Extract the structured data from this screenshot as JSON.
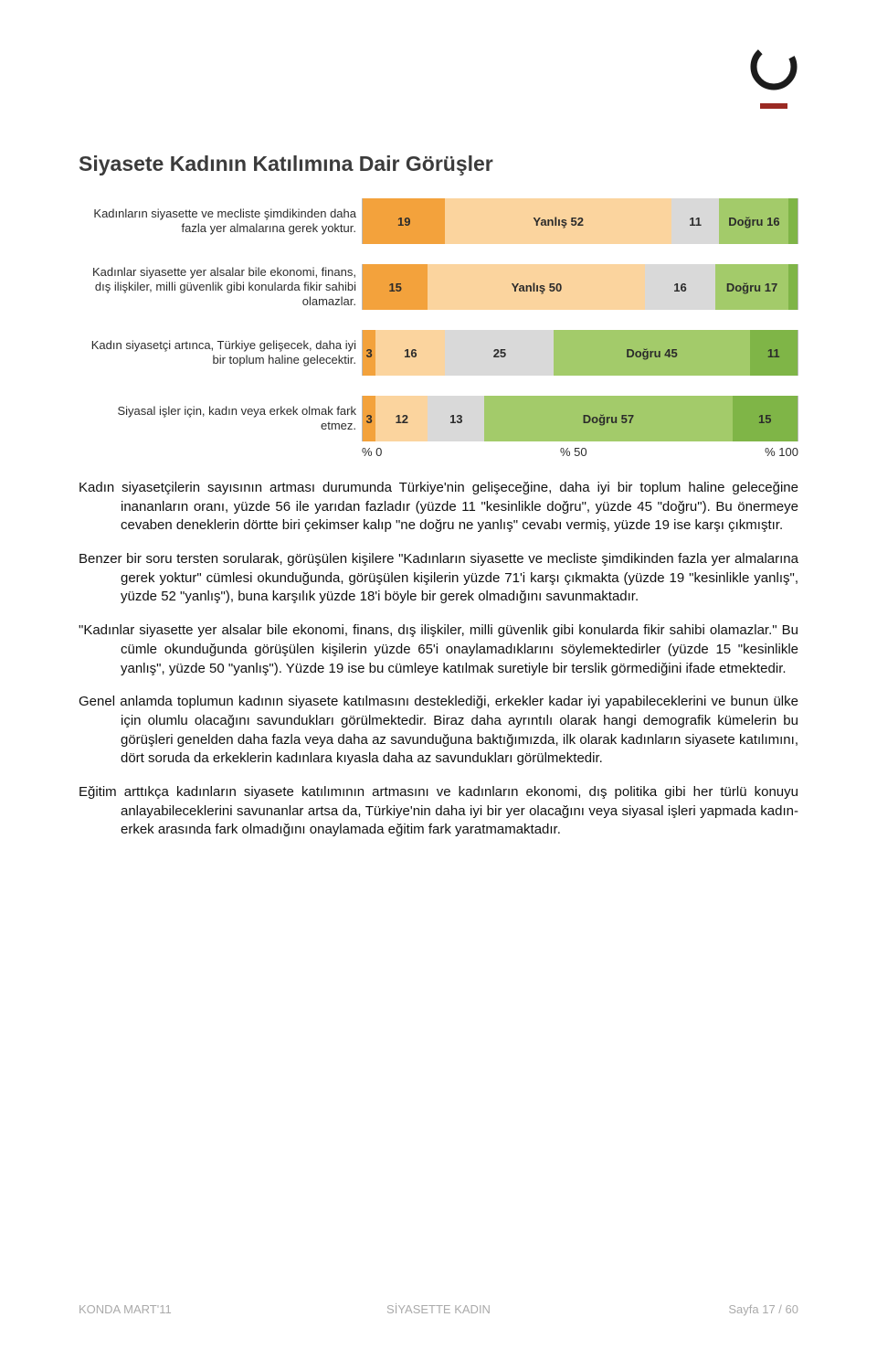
{
  "logo": {
    "fg": "#1c1c1c",
    "accent": "#9a2a23"
  },
  "chart": {
    "title": "Siyasete Kadının Katılımına Dair Görüşler",
    "segment_colors": {
      "strong_wrong": "#f3a23c",
      "wrong": "#fbd49e",
      "neutral": "#d9d9d9",
      "right": "#a3cb6a",
      "strong_right": "#7fb547"
    },
    "axis": {
      "ticks": [
        "% 0",
        "% 50",
        "% 100"
      ]
    },
    "rows": [
      {
        "label": "Kadınların siyasette ve mecliste şimdikinden daha fazla yer almalarına gerek yoktur.",
        "segs": [
          {
            "v": 19,
            "t": "19",
            "c": "strong_wrong"
          },
          {
            "v": 52,
            "t": "Yanlış 52",
            "c": "wrong"
          },
          {
            "v": 11,
            "t": "11",
            "c": "neutral"
          },
          {
            "v": 16,
            "t": "Doğru 16",
            "c": "right"
          },
          {
            "v": 2,
            "t": "",
            "c": "strong_right"
          }
        ]
      },
      {
        "label": "Kadınlar siyasette yer alsalar bile ekonomi, finans, dış ilişkiler, milli güvenlik gibi konularda fikir sahibi olamazlar.",
        "segs": [
          {
            "v": 15,
            "t": "15",
            "c": "strong_wrong"
          },
          {
            "v": 50,
            "t": "Yanlış 50",
            "c": "wrong"
          },
          {
            "v": 16,
            "t": "16",
            "c": "neutral"
          },
          {
            "v": 17,
            "t": "Doğru 17",
            "c": "right"
          },
          {
            "v": 2,
            "t": "",
            "c": "strong_right"
          }
        ]
      },
      {
        "label": "Kadın siyasetçi artınca, Türkiye gelişecek, daha iyi bir toplum haline gelecektir.",
        "segs": [
          {
            "v": 3,
            "t": "3",
            "c": "strong_wrong"
          },
          {
            "v": 16,
            "t": "16",
            "c": "wrong"
          },
          {
            "v": 25,
            "t": "25",
            "c": "neutral"
          },
          {
            "v": 45,
            "t": "Doğru 45",
            "c": "right"
          },
          {
            "v": 11,
            "t": "11",
            "c": "strong_right"
          }
        ]
      },
      {
        "label": "Siyasal işler için, kadın veya erkek olmak fark etmez.",
        "segs": [
          {
            "v": 3,
            "t": "3",
            "c": "strong_wrong"
          },
          {
            "v": 12,
            "t": "12",
            "c": "wrong"
          },
          {
            "v": 13,
            "t": "13",
            "c": "neutral"
          },
          {
            "v": 57,
            "t": "Doğru 57",
            "c": "right"
          },
          {
            "v": 15,
            "t": "15",
            "c": "strong_right"
          }
        ]
      }
    ]
  },
  "paragraphs": {
    "p1": "Kadın siyasetçilerin sayısının artması durumunda Türkiye'nin gelişeceğine, daha iyi bir toplum haline geleceğine inananların oranı, yüzde 56 ile yarıdan fazladır (yüzde 11 \"kesinlikle doğru\", yüzde 45 \"doğru\"). Bu önermeye cevaben deneklerin dörtte biri çekimser kalıp \"ne doğru ne yanlış\" cevabı vermiş, yüzde 19 ise karşı çıkmıştır.",
    "p2": "Benzer bir soru tersten sorularak, görüşülen kişilere \"Kadınların siyasette ve mecliste şimdikinden fazla yer almalarına gerek yoktur\"  cümlesi okunduğunda, görüşülen kişilerin yüzde 71'i karşı çıkmakta (yüzde 19 \"kesinlikle yanlış\", yüzde 52 \"yanlış\"), buna karşılık yüzde 18'i böyle bir gerek olmadığını savunmaktadır.",
    "p3": "\"Kadınlar siyasette yer alsalar bile ekonomi, finans, dış ilişkiler, milli güvenlik gibi konularda fikir sahibi olamazlar.\" Bu cümle okunduğunda görüşülen kişilerin yüzde 65'i onaylamadıklarını söylemektedirler (yüzde 15 \"kesinlikle yanlış\", yüzde 50 \"yanlış\").  Yüzde 19 ise bu cümleye katılmak suretiyle bir terslik görmediğini ifade etmektedir.",
    "p4": "Genel anlamda toplumun kadının siyasete katılmasını desteklediği, erkekler kadar iyi yapabileceklerini ve bunun ülke için olumlu olacağını savundukları görülmektedir. Biraz daha ayrıntılı olarak hangi demografik kümelerin bu görüşleri genelden daha fazla veya daha az savunduğuna baktığımızda, ilk olarak kadınların siyasete katılımını, dört soruda da erkeklerin kadınlara kıyasla daha az savundukları görülmektedir.",
    "p5": "Eğitim arttıkça kadınların siyasete katılımının artmasını ve kadınların ekonomi, dış politika gibi her türlü konuyu anlayabileceklerini savunanlar artsa da, Türkiye'nin daha iyi bir yer olacağını veya siyasal işleri yapmada kadın-erkek arasında fark olmadığını onaylamada eğitim fark yaratmamaktadır."
  },
  "footer": {
    "left": "KONDA MART'11",
    "mid": "SİYASETTE KADIN",
    "right": "Sayfa 17 / 60"
  }
}
